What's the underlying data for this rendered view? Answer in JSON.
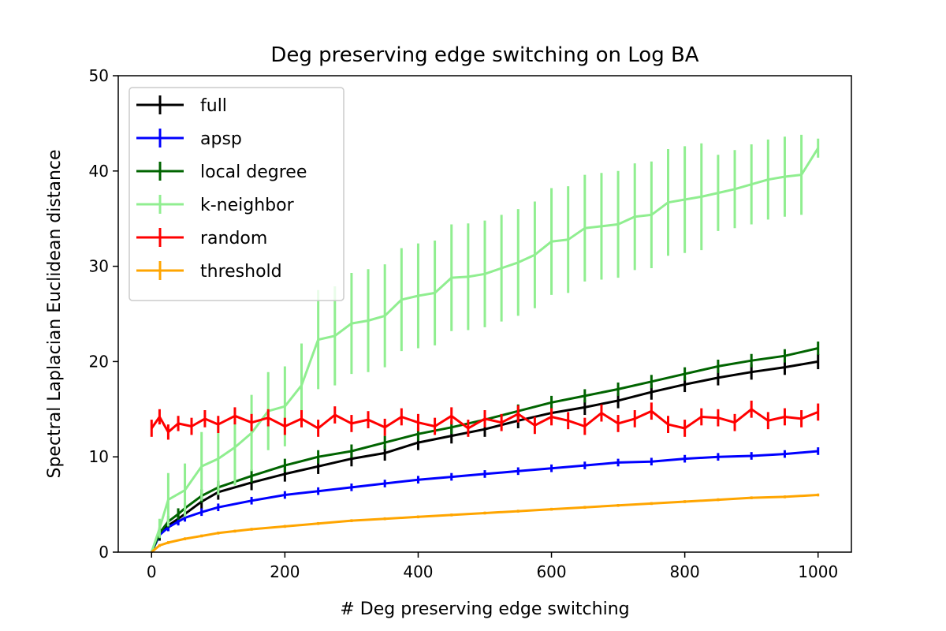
{
  "chart_data": {
    "type": "line",
    "title": "Deg preserving edge switching on Log BA",
    "xlabel": "# Deg preserving edge switching",
    "ylabel": "Spectral Laplacian Euclidean distance",
    "xlim": [
      -50,
      1050
    ],
    "ylim": [
      0,
      50
    ],
    "xticks": [
      "0",
      "200",
      "400",
      "600",
      "800",
      "1000"
    ],
    "yticks": [
      "0",
      "10",
      "20",
      "30",
      "40",
      "50"
    ],
    "grid": false,
    "legend_position": "upper left",
    "series": [
      {
        "name": "full",
        "color": "#000000",
        "x": [
          0,
          12,
          25,
          40,
          50,
          75,
          100,
          150,
          200,
          250,
          300,
          350,
          400,
          450,
          500,
          550,
          600,
          650,
          700,
          750,
          800,
          850,
          900,
          950,
          1000
        ],
        "y": [
          0,
          1.8,
          2.8,
          3.5,
          4.0,
          5.3,
          6.3,
          7.3,
          8.2,
          9.0,
          9.8,
          10.4,
          11.5,
          12.2,
          12.9,
          13.8,
          14.6,
          15.2,
          15.9,
          16.8,
          17.6,
          18.3,
          18.9,
          19.4,
          20.0
        ],
        "err": [
          0,
          0.6,
          0.6,
          0.6,
          0.6,
          0.8,
          0.8,
          0.8,
          0.8,
          0.8,
          0.8,
          0.8,
          0.8,
          0.8,
          0.8,
          0.8,
          0.8,
          0.8,
          0.8,
          0.8,
          0.8,
          0.8,
          0.8,
          0.8,
          0.8
        ]
      },
      {
        "name": "apsp",
        "color": "#0000ff",
        "x": [
          0,
          12,
          25,
          40,
          50,
          75,
          100,
          150,
          200,
          250,
          300,
          350,
          400,
          450,
          500,
          550,
          600,
          650,
          700,
          750,
          800,
          850,
          900,
          950,
          1000
        ],
        "y": [
          0,
          1.8,
          2.6,
          3.2,
          3.6,
          4.2,
          4.7,
          5.4,
          6.0,
          6.4,
          6.8,
          7.2,
          7.6,
          7.9,
          8.2,
          8.5,
          8.8,
          9.1,
          9.4,
          9.5,
          9.8,
          10.0,
          10.1,
          10.3,
          10.6
        ],
        "err": [
          0,
          0.3,
          0.4,
          0.4,
          0.4,
          0.4,
          0.4,
          0.4,
          0.4,
          0.4,
          0.4,
          0.4,
          0.4,
          0.4,
          0.4,
          0.4,
          0.4,
          0.4,
          0.4,
          0.4,
          0.4,
          0.4,
          0.4,
          0.4,
          0.4
        ]
      },
      {
        "name": "local degree",
        "color": "#006400",
        "x": [
          0,
          12,
          25,
          40,
          50,
          75,
          100,
          150,
          200,
          250,
          300,
          350,
          400,
          450,
          500,
          550,
          600,
          650,
          700,
          750,
          800,
          850,
          900,
          950,
          1000
        ],
        "y": [
          0,
          2.0,
          3.2,
          4.0,
          4.6,
          5.9,
          6.8,
          8.0,
          9.1,
          10.0,
          10.6,
          11.5,
          12.4,
          13.1,
          13.9,
          14.8,
          15.7,
          16.4,
          17.1,
          17.9,
          18.7,
          19.5,
          20.1,
          20.6,
          21.4
        ],
        "err": [
          0,
          0.6,
          0.6,
          0.6,
          0.6,
          0.7,
          0.7,
          0.7,
          0.7,
          0.7,
          0.7,
          0.7,
          0.7,
          0.7,
          0.7,
          0.7,
          0.7,
          0.7,
          0.7,
          0.7,
          0.7,
          0.7,
          0.7,
          0.7,
          0.7
        ]
      },
      {
        "name": "k-neighbor",
        "color": "#90ee90",
        "x": [
          0,
          12,
          25,
          50,
          75,
          100,
          125,
          150,
          175,
          200,
          225,
          250,
          275,
          300,
          325,
          350,
          375,
          400,
          425,
          450,
          475,
          500,
          525,
          550,
          575,
          600,
          625,
          650,
          675,
          700,
          725,
          750,
          775,
          800,
          825,
          850,
          875,
          900,
          925,
          950,
          975,
          1000
        ],
        "y": [
          0,
          2.5,
          5.5,
          6.5,
          9.0,
          9.8,
          11.0,
          12.5,
          14.8,
          15.3,
          17.5,
          22.3,
          22.7,
          24.0,
          24.3,
          24.8,
          26.5,
          26.9,
          27.2,
          28.8,
          28.9,
          29.2,
          29.8,
          30.4,
          31.2,
          32.6,
          32.8,
          34.0,
          34.2,
          34.4,
          35.2,
          35.4,
          36.7,
          37.0,
          37.3,
          37.7,
          38.1,
          38.6,
          39.1,
          39.4,
          39.6,
          42.4
        ],
        "err": [
          0,
          1.0,
          2.8,
          2.8,
          3.6,
          3.8,
          4.0,
          4.0,
          4.1,
          4.2,
          4.4,
          5.2,
          5.2,
          5.3,
          5.4,
          5.4,
          5.4,
          5.5,
          5.5,
          5.6,
          5.6,
          5.6,
          5.6,
          5.6,
          5.6,
          5.6,
          5.6,
          5.6,
          5.6,
          5.6,
          5.6,
          5.6,
          5.6,
          5.6,
          5.6,
          4.0,
          4.1,
          4.2,
          4.2,
          4.2,
          4.2,
          1.0
        ]
      },
      {
        "name": "random",
        "color": "#ff0000",
        "x": [
          0,
          12,
          25,
          40,
          60,
          80,
          100,
          125,
          150,
          175,
          200,
          225,
          250,
          275,
          300,
          325,
          350,
          375,
          400,
          425,
          450,
          475,
          500,
          525,
          550,
          575,
          600,
          625,
          650,
          675,
          700,
          725,
          750,
          775,
          800,
          825,
          850,
          875,
          900,
          925,
          950,
          975,
          1000
        ],
        "y": [
          13.0,
          14.2,
          12.6,
          13.5,
          13.2,
          14.0,
          13.4,
          14.3,
          13.6,
          14.1,
          13.2,
          14.0,
          13.0,
          14.4,
          13.5,
          13.9,
          13.1,
          14.2,
          13.6,
          13.2,
          14.3,
          13.0,
          14.0,
          13.6,
          14.5,
          13.3,
          14.2,
          13.8,
          13.2,
          14.6,
          13.5,
          14.0,
          14.8,
          13.4,
          13.0,
          14.2,
          14.1,
          13.6,
          15.0,
          13.8,
          14.2,
          14.0,
          14.7
        ],
        "err": [
          0.9,
          0.8,
          0.8,
          0.8,
          0.9,
          0.9,
          0.9,
          0.9,
          0.9,
          0.9,
          0.9,
          0.9,
          0.9,
          0.9,
          0.9,
          0.9,
          0.9,
          0.9,
          0.9,
          0.9,
          0.9,
          0.9,
          0.9,
          0.9,
          0.9,
          0.9,
          0.9,
          0.9,
          0.9,
          0.9,
          0.9,
          0.9,
          0.9,
          0.9,
          0.9,
          0.9,
          0.9,
          0.9,
          0.9,
          0.9,
          0.9,
          0.9,
          0.9
        ]
      },
      {
        "name": "threshold",
        "color": "#ffa500",
        "x": [
          0,
          12,
          25,
          50,
          75,
          100,
          125,
          150,
          200,
          250,
          300,
          350,
          400,
          450,
          500,
          550,
          600,
          650,
          700,
          750,
          800,
          850,
          900,
          950,
          1000
        ],
        "y": [
          0,
          0.7,
          1.0,
          1.4,
          1.7,
          2.0,
          2.2,
          2.4,
          2.7,
          3.0,
          3.3,
          3.5,
          3.7,
          3.9,
          4.1,
          4.3,
          4.5,
          4.7,
          4.9,
          5.1,
          5.3,
          5.5,
          5.7,
          5.8,
          6.0
        ],
        "err": [
          0,
          0.15,
          0.15,
          0.15,
          0.15,
          0.15,
          0.15,
          0.15,
          0.15,
          0.15,
          0.15,
          0.15,
          0.15,
          0.15,
          0.15,
          0.15,
          0.15,
          0.15,
          0.15,
          0.15,
          0.15,
          0.15,
          0.15,
          0.15,
          0.15
        ]
      }
    ]
  }
}
